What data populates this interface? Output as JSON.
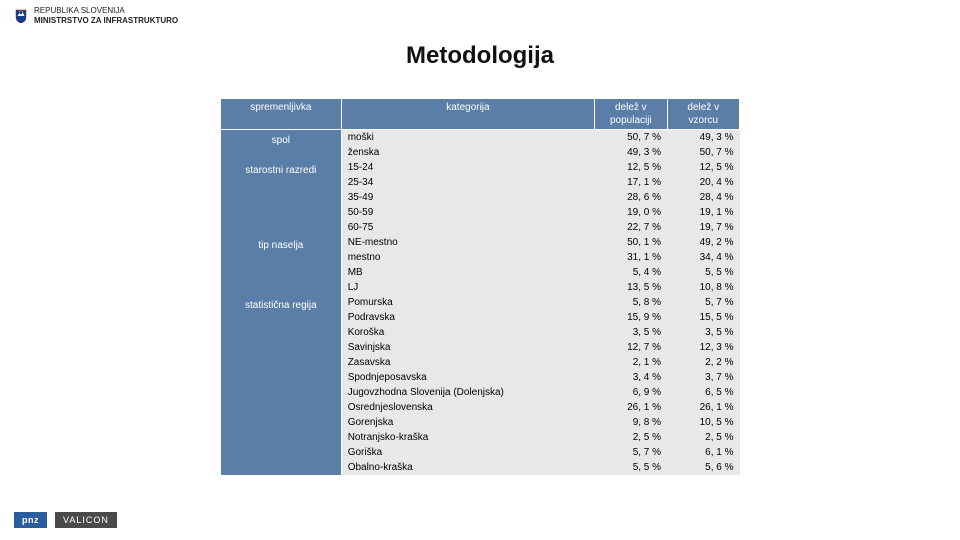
{
  "header": {
    "line1": "REPUBLIKA SLOVENIJA",
    "line2": "MINISTRSTVO ZA INFRASTRUKTURO",
    "emblem_colors": {
      "blue": "#0b3d91",
      "red": "#d40000",
      "white": "#ffffff",
      "yellow": "#ffd200"
    }
  },
  "title": "Metodologija",
  "table": {
    "header_bg": "#5b7ea8",
    "header_color": "#ffffff",
    "body_bg": "#e8e8e8",
    "font_size": 10,
    "columns": {
      "variable": "spremenljivka",
      "category": "kategorija",
      "pop_share": "delež v populaciji",
      "sample_share": "delež v vzorcu"
    },
    "groups": [
      {
        "variable": "spol",
        "rows": [
          {
            "cat": "moški",
            "pop": "50, 7 %",
            "sam": "49, 3 %"
          },
          {
            "cat": "ženska",
            "pop": "49, 3 %",
            "sam": "50, 7 %"
          }
        ]
      },
      {
        "variable": "starostni razredi",
        "rows": [
          {
            "cat": "15-24",
            "pop": "12, 5 %",
            "sam": "12, 5 %"
          },
          {
            "cat": "25-34",
            "pop": "17, 1 %",
            "sam": "20, 4 %"
          },
          {
            "cat": "35-49",
            "pop": "28, 6 %",
            "sam": "28, 4 %"
          },
          {
            "cat": "50-59",
            "pop": "19, 0 %",
            "sam": "19, 1 %"
          },
          {
            "cat": "60-75",
            "pop": "22, 7 %",
            "sam": "19, 7 %"
          }
        ]
      },
      {
        "variable": "tip naselja",
        "rows": [
          {
            "cat": "NE-mestno",
            "pop": "50, 1 %",
            "sam": "49, 2 %"
          },
          {
            "cat": "mestno",
            "pop": "31, 1 %",
            "sam": "34, 4 %"
          },
          {
            "cat": "MB",
            "pop": "5, 4 %",
            "sam": "5, 5 %"
          },
          {
            "cat": "LJ",
            "pop": "13, 5 %",
            "sam": "10, 8 %"
          }
        ]
      },
      {
        "variable": "statistična regija",
        "rows": [
          {
            "cat": "Pomurska",
            "pop": "5, 8 %",
            "sam": "5, 7 %"
          },
          {
            "cat": "Podravska",
            "pop": "15, 9 %",
            "sam": "15, 5 %"
          },
          {
            "cat": "Koroška",
            "pop": "3, 5 %",
            "sam": "3, 5 %"
          },
          {
            "cat": "Savinjska",
            "pop": "12, 7 %",
            "sam": "12, 3 %"
          },
          {
            "cat": "Zasavska",
            "pop": "2, 1 %",
            "sam": "2, 2 %"
          },
          {
            "cat": "Spodnjeposavska",
            "pop": "3, 4 %",
            "sam": "3, 7 %"
          },
          {
            "cat": "Jugovzhodna Slovenija (Dolenjska)",
            "pop": "6, 9 %",
            "sam": "6, 5 %"
          },
          {
            "cat": "Osrednjeslovenska",
            "pop": "26, 1 %",
            "sam": "26, 1 %"
          },
          {
            "cat": "Gorenjska",
            "pop": "9, 8 %",
            "sam": "10, 5 %"
          },
          {
            "cat": "Notranjsko-kraška",
            "pop": "2, 5 %",
            "sam": "2, 5 %"
          },
          {
            "cat": "Goriška",
            "pop": "5, 7 %",
            "sam": "6, 1 %"
          },
          {
            "cat": "Obalno-kraška",
            "pop": "5, 5 %",
            "sam": "5, 6 %"
          }
        ]
      }
    ]
  },
  "footer": {
    "logo1": "pnz",
    "logo2": "VALICON",
    "logo1_bg": "#2a5d9e",
    "logo2_bg": "#4a4a4a"
  }
}
